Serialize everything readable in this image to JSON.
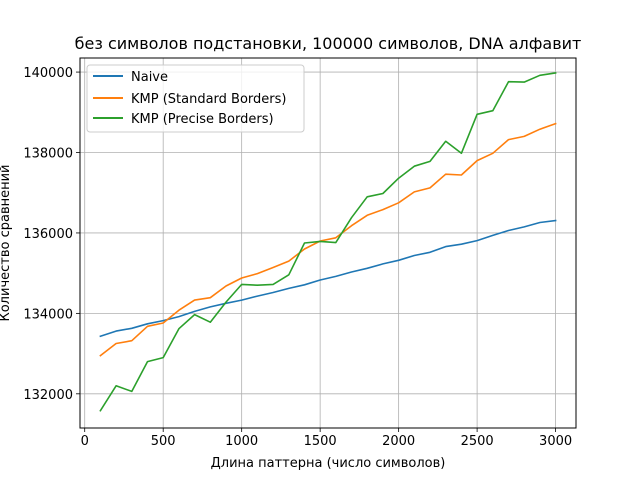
{
  "chart_data": {
    "type": "line",
    "title": "без символов подстановки, 100000 символов, DNA алфавит",
    "xlabel": "Длина паттерна (число символов)",
    "ylabel": "Количество сравнений",
    "xlim": [
      -30,
      3130
    ],
    "ylim": [
      131150,
      140350
    ],
    "x_ticks": [
      0,
      500,
      1000,
      1500,
      2000,
      2500,
      3000
    ],
    "y_ticks": [
      132000,
      134000,
      136000,
      138000,
      140000
    ],
    "grid": true,
    "legend_position": "upper-left",
    "x": [
      100,
      200,
      300,
      400,
      500,
      600,
      700,
      800,
      900,
      1000,
      1100,
      1200,
      1300,
      1400,
      1500,
      1600,
      1700,
      1800,
      1900,
      2000,
      2100,
      2200,
      2300,
      2400,
      2500,
      2600,
      2700,
      2800,
      2900,
      3000
    ],
    "series": [
      {
        "name": "Naive",
        "color": "#1f77b4",
        "values": [
          133430,
          133560,
          133630,
          133740,
          133820,
          133920,
          134050,
          134160,
          134250,
          134330,
          134430,
          134520,
          134620,
          134710,
          134830,
          134920,
          135030,
          135120,
          135230,
          135320,
          135440,
          135520,
          135660,
          135720,
          135810,
          135940,
          136060,
          136150,
          136260,
          136310
        ]
      },
      {
        "name": "KMP (Standard Borders)",
        "color": "#ff7f0e",
        "values": [
          132950,
          133250,
          133320,
          133680,
          133760,
          134080,
          134330,
          134390,
          134680,
          134880,
          134990,
          135140,
          135300,
          135600,
          135800,
          135880,
          136180,
          136440,
          136580,
          136750,
          137020,
          137120,
          137460,
          137440,
          137800,
          137980,
          138320,
          138400,
          138580,
          138720
        ]
      },
      {
        "name": "KMP (Precise Borders)",
        "color": "#2ca02c",
        "values": [
          131580,
          132200,
          132060,
          132800,
          132900,
          133620,
          133970,
          133780,
          134280,
          134720,
          134700,
          134720,
          134960,
          135750,
          135790,
          135760,
          136380,
          136900,
          136980,
          137360,
          137660,
          137780,
          138280,
          137980,
          138950,
          139040,
          139760,
          139750,
          139920,
          139980
        ]
      }
    ]
  }
}
